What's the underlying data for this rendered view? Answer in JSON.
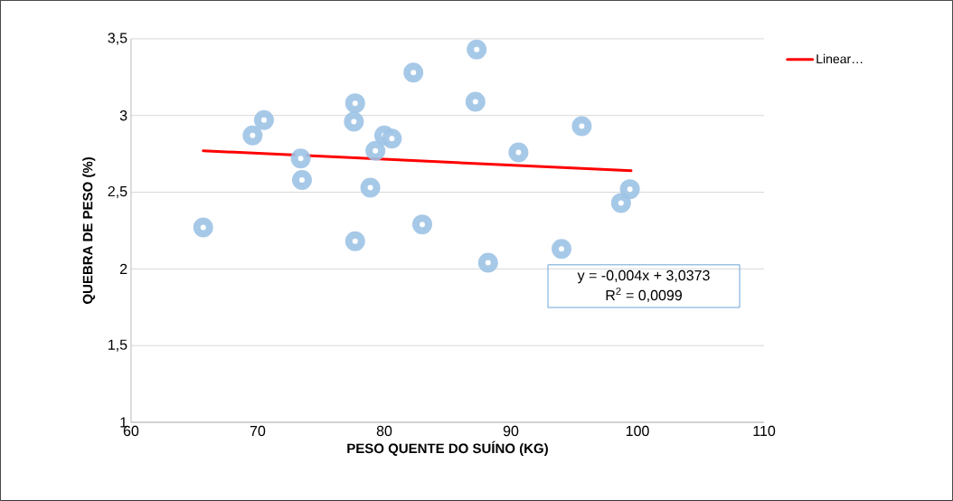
{
  "chart_data": {
    "type": "scatter",
    "xlabel": "PESO QUENTE DO SUÍNO (KG)",
    "ylabel": "QUEBRA DE PESO (%)",
    "xlim": [
      60,
      110
    ],
    "ylim": [
      1,
      3.5
    ],
    "xticks": [
      60,
      70,
      80,
      90,
      100,
      110
    ],
    "yticks": [
      1,
      {
        "value": 1.5,
        "label": "1,5"
      },
      2,
      {
        "value": 2.5,
        "label": "2,5"
      },
      3,
      {
        "value": 3.5,
        "label": "3,5"
      }
    ],
    "grid": "y",
    "legend": "top right",
    "marker": "circle",
    "annotations": [
      {
        "text": "y = -0,004x + 3,0373"
      },
      {
        "text": "R$^{2}$ = 0,0099"
      }
    ],
    "series": [
      {
        "color": "#9dc3e6",
        "x": [
          65.7,
          69.6,
          70.5,
          73.4,
          73.5,
          77.7,
          77.6,
          77.7,
          78.9,
          79.3,
          80.0,
          80.6,
          82.3,
          83.0,
          87.3,
          87.2,
          88.2,
          90.6,
          94.0,
          95.6,
          98.7,
          99.4
        ],
        "values": [
          2.27,
          2.87,
          2.97,
          2.72,
          2.58,
          3.08,
          2.96,
          2.18,
          2.53,
          2.77,
          2.87,
          2.85,
          3.28,
          2.29,
          3.43,
          3.09,
          2.04,
          2.76,
          2.13,
          2.93,
          2.43,
          2.52
        ]
      },
      {
        "type": "line",
        "name": "Linear…",
        "color": "#ff0000",
        "marker": "none",
        "x": [
          65.7,
          99.5
        ],
        "values": [
          2.77,
          2.64
        ]
      }
    ]
  }
}
